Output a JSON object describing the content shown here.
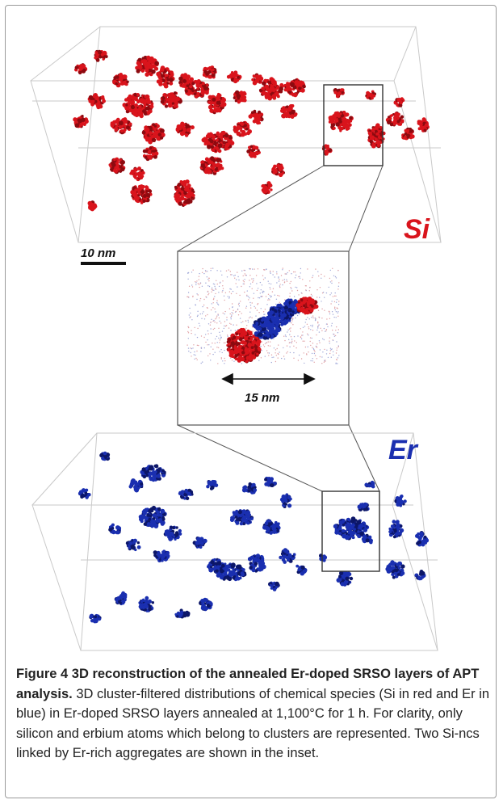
{
  "figure": {
    "si_label": "Si",
    "er_label": "Er",
    "scale_label_main": "10 nm",
    "scale_label_inset": "15 nm",
    "colors": {
      "si": "#d9141c",
      "er": "#1a2fb0",
      "box": "#c9c9c9"
    }
  },
  "caption": {
    "title": "Figure 4 3D reconstruction of the annealed Er-doped SRSO layers of APT analysis.",
    "body": "3D cluster-filtered distributions of chemical species (Si in red and Er in blue) in Er-doped SRSO layers annealed at 1,100°C for 1 h. For clarity, only silicon and erbium atoms which belong to clusters are represented. Two Si-ncs linked by Er-rich aggregates are shown in the inset."
  }
}
